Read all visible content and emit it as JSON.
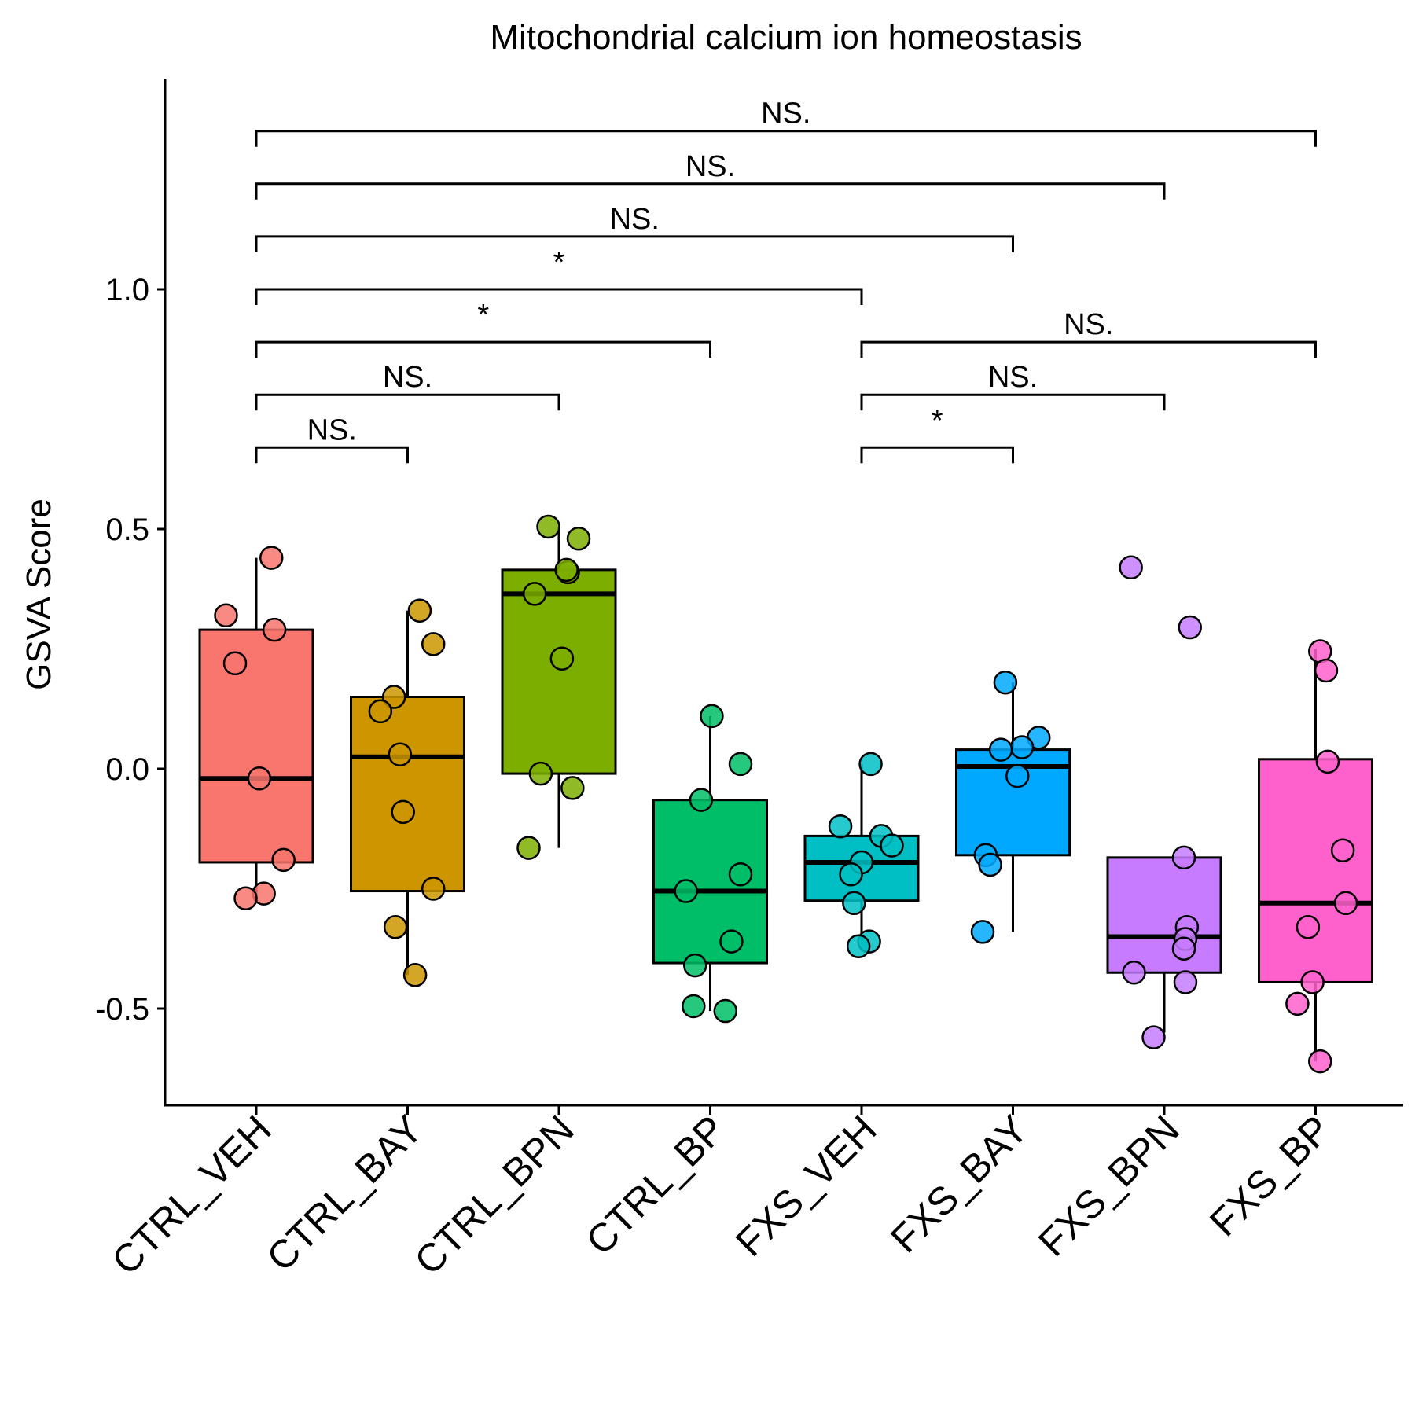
{
  "chart_data": {
    "type": "box",
    "title": "Mitochondrial calcium ion homeostasis",
    "xlabel": "",
    "ylabel": "GSVA Score",
    "ylim": [
      -0.7,
      1.45
    ],
    "yticks": [
      -0.5,
      0.0,
      0.5,
      1.0
    ],
    "ytick_labels": [
      "-0.5",
      "0.0",
      "0.5",
      "1.0"
    ],
    "grid": false,
    "legend": "none",
    "categories": [
      "CTRL_VEH",
      "CTRL_BAY",
      "CTRL_BPN",
      "CTRL_BP",
      "FXS_VEH",
      "FXS_BAY",
      "FXS_BPN",
      "FXS_BP"
    ],
    "colors": [
      "#F8766D",
      "#CD9600",
      "#7CAE00",
      "#00BE67",
      "#00BFC4",
      "#00A9FF",
      "#C77CFF",
      "#FF61CC"
    ],
    "boxes": [
      {
        "q1": -0.195,
        "median": -0.02,
        "q3": 0.29,
        "whisker_low": -0.27,
        "whisker_high": 0.44
      },
      {
        "q1": -0.255,
        "median": 0.025,
        "q3": 0.15,
        "whisker_low": -0.43,
        "whisker_high": 0.33
      },
      {
        "q1": -0.01,
        "median": 0.365,
        "q3": 0.415,
        "whisker_low": -0.165,
        "whisker_high": 0.505
      },
      {
        "q1": -0.405,
        "median": -0.255,
        "q3": -0.065,
        "whisker_low": -0.505,
        "whisker_high": 0.11
      },
      {
        "q1": -0.275,
        "median": -0.195,
        "q3": -0.14,
        "whisker_low": -0.36,
        "whisker_high": 0.01
      },
      {
        "q1": -0.18,
        "median": 0.005,
        "q3": 0.04,
        "whisker_low": -0.34,
        "whisker_high": 0.18
      },
      {
        "q1": -0.425,
        "median": -0.35,
        "q3": -0.185,
        "whisker_low": -0.55,
        "whisker_high": -0.185
      },
      {
        "q1": -0.445,
        "median": -0.28,
        "q3": 0.02,
        "whisker_low": -0.61,
        "whisker_high": 0.25
      }
    ],
    "points": [
      [
        0.44,
        0.32,
        0.29,
        0.22,
        -0.02,
        -0.19,
        -0.26,
        -0.27
      ],
      [
        0.33,
        0.26,
        0.15,
        0.12,
        0.03,
        -0.09,
        -0.25,
        -0.33,
        -0.43
      ],
      [
        0.505,
        0.48,
        0.41,
        0.415,
        0.365,
        0.23,
        -0.01,
        -0.04,
        -0.165
      ],
      [
        0.11,
        0.01,
        -0.065,
        -0.22,
        -0.255,
        -0.36,
        -0.41,
        -0.495,
        -0.505
      ],
      [
        0.01,
        -0.12,
        -0.14,
        -0.16,
        -0.195,
        -0.22,
        -0.28,
        -0.36,
        -0.37
      ],
      [
        0.18,
        0.065,
        0.045,
        0.04,
        -0.015,
        -0.18,
        -0.2,
        -0.34
      ],
      [
        0.42,
        0.295,
        -0.185,
        -0.33,
        -0.355,
        -0.375,
        -0.425,
        -0.445,
        -0.56
      ],
      [
        0.245,
        0.205,
        0.015,
        -0.17,
        -0.28,
        -0.33,
        -0.445,
        -0.49,
        -0.61
      ]
    ],
    "point_x_jitter": [
      [
        0.1,
        -0.2,
        0.12,
        -0.14,
        0.02,
        0.18,
        0.05,
        -0.07
      ],
      [
        0.08,
        0.17,
        -0.09,
        -0.18,
        -0.05,
        -0.03,
        0.17,
        -0.08,
        0.05
      ],
      [
        -0.07,
        0.13,
        0.06,
        0.05,
        -0.16,
        0.02,
        -0.12,
        0.09,
        -0.2
      ],
      [
        0.01,
        0.2,
        -0.06,
        0.2,
        -0.16,
        0.14,
        -0.1,
        -0.11,
        0.1
      ],
      [
        0.06,
        -0.14,
        0.13,
        0.2,
        0.0,
        -0.07,
        -0.05,
        0.05,
        -0.02
      ],
      [
        -0.05,
        0.17,
        0.06,
        -0.08,
        0.03,
        -0.18,
        -0.15,
        -0.2
      ],
      [
        -0.22,
        0.17,
        0.13,
        0.15,
        0.14,
        0.13,
        -0.2,
        0.14,
        -0.07
      ],
      [
        0.03,
        0.07,
        0.08,
        0.18,
        0.2,
        -0.05,
        -0.02,
        -0.12,
        0.03
      ]
    ],
    "comparisons": [
      {
        "from": "CTRL_VEH",
        "to": "CTRL_BAY",
        "label": "NS.",
        "y": 0.67
      },
      {
        "from": "CTRL_VEH",
        "to": "CTRL_BPN",
        "label": "NS.",
        "y": 0.78
      },
      {
        "from": "CTRL_VEH",
        "to": "CTRL_BP",
        "label": "*",
        "y": 0.89
      },
      {
        "from": "CTRL_VEH",
        "to": "FXS_VEH",
        "label": "*",
        "y": 1.0
      },
      {
        "from": "CTRL_VEH",
        "to": "FXS_BAY",
        "label": "NS.",
        "y": 1.11
      },
      {
        "from": "CTRL_VEH",
        "to": "FXS_BPN",
        "label": "NS.",
        "y": 1.22
      },
      {
        "from": "CTRL_VEH",
        "to": "FXS_BP",
        "label": "NS.",
        "y": 1.33
      },
      {
        "from": "FXS_VEH",
        "to": "FXS_BAY",
        "label": "*",
        "y": 0.67
      },
      {
        "from": "FXS_VEH",
        "to": "FXS_BPN",
        "label": "NS.",
        "y": 0.78
      },
      {
        "from": "FXS_VEH",
        "to": "FXS_BP",
        "label": "NS.",
        "y": 0.89
      }
    ]
  }
}
